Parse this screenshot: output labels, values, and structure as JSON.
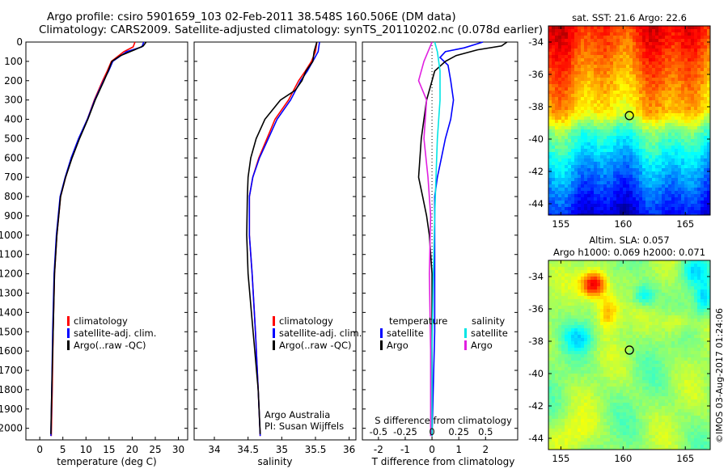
{
  "title_line1": "Argo profile: csiro 5901659_103 02-Feb-2011 38.548S 160.506E (DM data)",
  "title_line2": "Climatology: CARS2009. Satellite-adjusted climatology: synTS_20110202.nc (0.078d earlier)",
  "credit": "Argo Australia",
  "pi": "PI: Susan Wijffels",
  "imos_stamp": "©IMOS 03-Aug-2017 01:24:06",
  "colors": {
    "clim": "#ff0000",
    "sat": "#0000ff",
    "argo": "#000000",
    "sat_s": "#00e5e5",
    "argo_s": "#e020e0"
  },
  "legend": {
    "climatology": "climatology",
    "satellite_adj": "satellite-adj. clim.",
    "argo": "Argo(..raw -QC)",
    "temperature": "temperature",
    "salinity": "salinity",
    "satellite": "satellite",
    "argo_short": "Argo"
  },
  "chart_data": [
    {
      "type": "line",
      "id": "temperature",
      "xlabel": "temperature (deg C)",
      "ylabel": "",
      "xlim": [
        -3,
        32
      ],
      "ylim": [
        2060,
        0
      ],
      "xticks": [
        0,
        5,
        10,
        15,
        20,
        25,
        30
      ],
      "yticks": [
        0,
        100,
        200,
        300,
        400,
        500,
        600,
        700,
        800,
        900,
        1000,
        1100,
        1200,
        1300,
        1400,
        1500,
        1600,
        1700,
        1800,
        1900,
        2000
      ],
      "series": [
        {
          "name": "climatology",
          "color": "#ff0000",
          "x": [
            20.6,
            20.2,
            18.2,
            15.5,
            14.6,
            13.6,
            11.8,
            10.3,
            8.5,
            6.9,
            5.6,
            4.5,
            3.7,
            3.2,
            2.9,
            2.7,
            2.5
          ],
          "y": [
            0,
            25,
            50,
            100,
            150,
            200,
            300,
            400,
            500,
            600,
            700,
            800,
            1000,
            1200,
            1500,
            1800,
            2040
          ]
        },
        {
          "name": "satellite-adj. clim.",
          "color": "#0000ff",
          "x": [
            22.5,
            22.1,
            18.8,
            15.8,
            14.9,
            13.8,
            11.9,
            10.3,
            8.4,
            6.8,
            5.5,
            4.4,
            3.6,
            3.1,
            2.8,
            2.6,
            2.4
          ],
          "y": [
            0,
            25,
            50,
            100,
            150,
            200,
            300,
            400,
            500,
            600,
            700,
            800,
            1000,
            1200,
            1500,
            1800,
            2040
          ]
        },
        {
          "name": "Argo(..raw -QC)",
          "color": "#000000",
          "x": [
            23.0,
            22.4,
            20.5,
            17.5,
            15.6,
            14.8,
            13.9,
            12.0,
            10.4,
            8.6,
            7.0,
            5.6,
            4.5,
            3.7,
            3.2,
            2.9,
            2.6,
            2.4
          ],
          "y": [
            0,
            20,
            40,
            70,
            100,
            150,
            200,
            300,
            400,
            500,
            600,
            700,
            800,
            1000,
            1200,
            1500,
            1800,
            2030
          ]
        }
      ]
    },
    {
      "type": "line",
      "id": "salinity",
      "xlabel": "salinity",
      "ylabel": "",
      "xlim": [
        33.7,
        36.1
      ],
      "ylim": [
        2060,
        0
      ],
      "xticks": [
        34,
        34.5,
        35,
        35.5,
        36
      ],
      "series": [
        {
          "name": "climatology",
          "color": "#ff0000",
          "x": [
            35.52,
            35.5,
            35.44,
            35.35,
            35.25,
            35.1,
            34.9,
            34.78,
            34.66,
            34.57,
            34.52,
            34.52,
            34.56,
            34.61,
            34.65,
            34.68
          ],
          "y": [
            0,
            50,
            100,
            150,
            200,
            300,
            400,
            500,
            600,
            700,
            800,
            1000,
            1200,
            1500,
            1800,
            2040
          ]
        },
        {
          "name": "satellite-adj. clim.",
          "color": "#0000ff",
          "x": [
            35.56,
            35.54,
            35.46,
            35.38,
            35.28,
            35.13,
            34.93,
            34.8,
            34.67,
            34.57,
            34.52,
            34.52,
            34.56,
            34.61,
            34.65,
            34.68
          ],
          "y": [
            0,
            50,
            100,
            150,
            200,
            300,
            400,
            500,
            600,
            700,
            800,
            1000,
            1200,
            1500,
            1800,
            2040
          ]
        },
        {
          "name": "Argo(..raw -QC)",
          "color": "#000000",
          "x": [
            35.52,
            35.48,
            35.46,
            35.36,
            35.3,
            35.2,
            34.98,
            34.75,
            34.62,
            34.54,
            34.5,
            34.49,
            34.48,
            34.5,
            34.55,
            34.6,
            34.65,
            34.68
          ],
          "y": [
            0,
            50,
            100,
            150,
            200,
            250,
            300,
            400,
            500,
            600,
            700,
            800,
            1000,
            1200,
            1400,
            1600,
            1800,
            2030
          ]
        }
      ]
    },
    {
      "type": "line",
      "id": "difference",
      "xlabel": "T difference from climatology",
      "x2label": "S difference from climatology",
      "xlim": [
        -2.6,
        3.2
      ],
      "ylim": [
        2060,
        0
      ],
      "xticks": [
        -2,
        -1,
        0,
        1,
        2
      ],
      "xtick_labels": [
        "-2",
        "-1",
        "0",
        "1",
        "2"
      ],
      "x2ticks": [
        -2,
        -1,
        0,
        1,
        2
      ],
      "x2tick_labels": [
        "-0.5",
        "-0.25",
        "0",
        "0.25",
        "0.5"
      ],
      "series": [
        {
          "name": "temperature satellite",
          "color": "#0000ff",
          "x": [
            1.9,
            1.2,
            0.5,
            0.3,
            0.6,
            0.7,
            0.8,
            0.7,
            0.5,
            0.35,
            0.2,
            0.1,
            0.1,
            0.1,
            0.0
          ],
          "y": [
            0,
            30,
            50,
            80,
            120,
            200,
            300,
            400,
            500,
            600,
            700,
            800,
            1000,
            1500,
            2040
          ]
        },
        {
          "name": "temperature Argo",
          "color": "#000000",
          "x": [
            2.8,
            2.6,
            1.7,
            0.9,
            0.5,
            0.1,
            0.0,
            -0.2,
            -0.4,
            -0.5,
            -0.35,
            -0.2,
            -0.1,
            0.0,
            0.0,
            0.0
          ],
          "y": [
            0,
            20,
            40,
            70,
            100,
            150,
            200,
            300,
            500,
            700,
            800,
            900,
            1000,
            1200,
            1600,
            2040
          ]
        },
        {
          "name": "salinity satellite",
          "color": "#00e5e5",
          "x": [
            0.1,
            0.2,
            0.3,
            0.3,
            0.2,
            0.15,
            0.1,
            0.05,
            0.0,
            0.0
          ],
          "y": [
            0,
            50,
            150,
            300,
            500,
            700,
            900,
            1200,
            1600,
            2040
          ]
        },
        {
          "name": "salinity Argo",
          "color": "#e020e0",
          "x": [
            0.0,
            -0.3,
            -0.5,
            -0.2,
            -0.3,
            -0.15,
            -0.05,
            -0.1,
            -0.05,
            -0.05
          ],
          "y": [
            0,
            100,
            200,
            300,
            500,
            700,
            900,
            1200,
            1600,
            2040
          ]
        }
      ]
    },
    {
      "type": "heatmap",
      "id": "sst_map",
      "title": "sat. SST: 21.6 Argo: 22.6",
      "xlim": [
        154,
        167
      ],
      "ylim": [
        -44.7,
        -33
      ],
      "xticks": [
        155,
        160,
        165
      ],
      "yticks": [
        -34,
        -36,
        -38,
        -40,
        -42,
        -44
      ],
      "marker": {
        "lon": 160.506,
        "lat": -38.548
      }
    },
    {
      "type": "heatmap",
      "id": "sla_map",
      "title": "Altim. SLA: 0.057",
      "subtitle": "Argo h1000: 0.069 h2000: 0.071",
      "xlim": [
        154,
        167
      ],
      "ylim": [
        -44.7,
        -33
      ],
      "xticks": [
        155,
        160,
        165
      ],
      "yticks": [
        -34,
        -36,
        -38,
        -40,
        -42,
        -44
      ],
      "marker": {
        "lon": 160.506,
        "lat": -38.548
      }
    }
  ]
}
